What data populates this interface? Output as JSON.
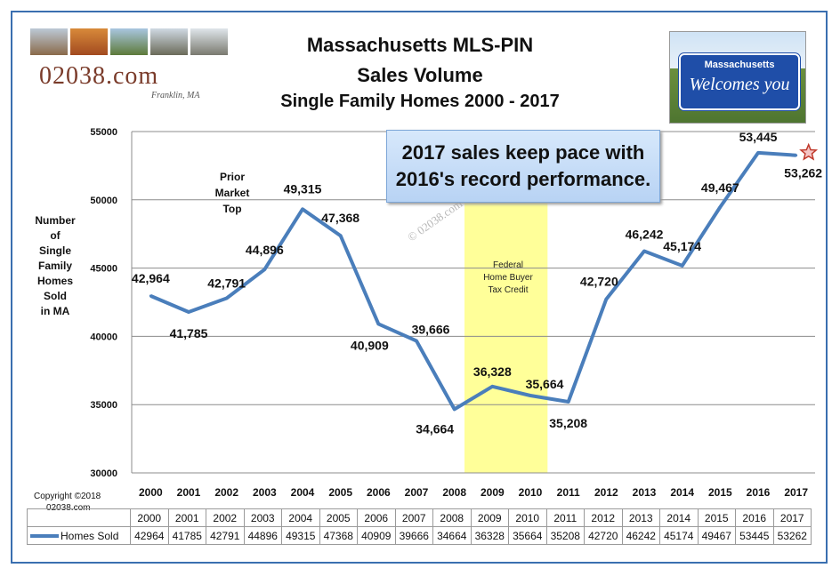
{
  "logo": {
    "text": "02038.com",
    "subtext": "Franklin, MA"
  },
  "sign": {
    "line1": "Massachusetts",
    "line2": "Welcomes you"
  },
  "copyright": {
    "line1": "Copyright ©2018",
    "line2": "02038.com"
  },
  "chart_data": {
    "type": "line",
    "title": "Massachusetts  MLS-PIN",
    "subtitle": "Sales Volume",
    "subtitle2": "Single Family Homes 2000 - 2017",
    "ylabel_lines": [
      "Number",
      "of",
      "Single",
      "Family",
      "Homes",
      "Sold",
      "in MA"
    ],
    "ylim": [
      30000,
      55000
    ],
    "yticks": [
      30000,
      35000,
      40000,
      45000,
      50000,
      55000
    ],
    "grid": true,
    "categories": [
      "2000",
      "2001",
      "2002",
      "2003",
      "2004",
      "2005",
      "2006",
      "2007",
      "2008",
      "2009",
      "2010",
      "2011",
      "2012",
      "2013",
      "2014",
      "2015",
      "2016",
      "2017"
    ],
    "series": [
      {
        "name": "Homes Sold",
        "values": [
          42964,
          41785,
          42791,
          44896,
          49315,
          47368,
          40909,
          39666,
          34664,
          36328,
          35664,
          35208,
          42720,
          46242,
          45174,
          49467,
          53445,
          53262
        ]
      }
    ],
    "data_labels": [
      "42,964",
      "41,785",
      "42,791",
      "44,896",
      "49,315",
      "47,368",
      "40,909",
      "39,666",
      "34,664",
      "36,328",
      "35,664",
      "35,208",
      "42,720",
      "46,242",
      "45,174",
      "49,467",
      "53,445",
      "53,262"
    ],
    "annotations": {
      "prior_top": [
        "Prior",
        "Market",
        "Top"
      ],
      "tax_credit": [
        "Federal",
        "Home Buyer",
        "Tax Credit"
      ],
      "watermark": "© 02038.com"
    },
    "highlight_range": [
      "2009",
      "2010"
    ],
    "callout": [
      "2017 sales keep pace with",
      "2016's record performance."
    ],
    "colors": {
      "line": "#4a7ebb",
      "highlight": "#ffff99",
      "star": "#c0392b"
    }
  }
}
